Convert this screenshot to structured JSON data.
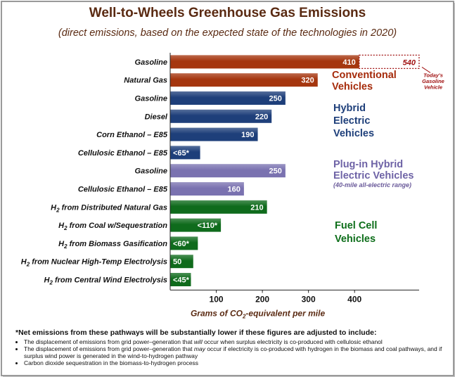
{
  "chart_data": {
    "type": "bar",
    "orientation": "horizontal",
    "title": "Well-to-Wheels Greenhouse Gas Emissions",
    "subtitle": "(direct emissions, based on the expected state of the technologies in 2020)",
    "xlabel_pre": "Grams of CO",
    "xlabel_sub": "2",
    "xlabel_post": "-equivalent per mile",
    "xlim": [
      0,
      540
    ],
    "xticks": [
      100,
      200,
      300,
      400
    ],
    "bars": [
      {
        "pre": "",
        "sub": "",
        "label": "Gasoline",
        "value": 410,
        "display": "410",
        "group": 0
      },
      {
        "pre": "",
        "sub": "",
        "label": "Natural Gas",
        "value": 320,
        "display": "320",
        "group": 0
      },
      {
        "pre": "",
        "sub": "",
        "label": "Gasoline",
        "value": 250,
        "display": "250",
        "group": 1
      },
      {
        "pre": "",
        "sub": "",
        "label": "Diesel",
        "value": 220,
        "display": "220",
        "group": 1
      },
      {
        "pre": "",
        "sub": "",
        "label": "Corn Ethanol – E85",
        "value": 190,
        "display": "190",
        "group": 1
      },
      {
        "pre": "",
        "sub": "",
        "label": "Cellulosic Ethanol – E85",
        "value": 65,
        "display": "<65*",
        "group": 1
      },
      {
        "pre": "",
        "sub": "",
        "label": "Gasoline",
        "value": 250,
        "display": "250",
        "group": 2
      },
      {
        "pre": "",
        "sub": "",
        "label": "Cellulosic Ethanol – E85",
        "value": 160,
        "display": "160",
        "group": 2
      },
      {
        "pre": "H",
        "sub": "2",
        "label": " from Distributed Natural Gas",
        "value": 210,
        "display": "210",
        "group": 3
      },
      {
        "pre": "H",
        "sub": "2",
        "label": " from Coal w/Sequestration",
        "value": 110,
        "display": "<110*",
        "group": 3
      },
      {
        "pre": "H",
        "sub": "2",
        "label": " from Biomass Gasification",
        "value": 60,
        "display": "<60*",
        "group": 3
      },
      {
        "pre": "H",
        "sub": "2",
        "label": " from Nuclear High-Temp Electrolysis",
        "value": 50,
        "display": "50",
        "group": 3
      },
      {
        "pre": "H",
        "sub": "2",
        "label": " from Central Wind Electrolysis",
        "value": 45,
        "display": "<45*",
        "group": 3
      }
    ],
    "groups": [
      {
        "lines": [
          "Conventional",
          "Vehicles"
        ],
        "color": "#a52a0a",
        "note": ""
      },
      {
        "lines": [
          "Hybrid",
          "Electric",
          "Vehicles"
        ],
        "color": "#1e3f7a",
        "note": ""
      },
      {
        "lines": [
          "Plug-in Hybrid",
          "Electric Vehicles"
        ],
        "color": "#6e63a6",
        "note": "(40-mile all-electric range)"
      },
      {
        "lines": [
          "Fuel Cell",
          "Vehicles"
        ],
        "color": "#0d6e1a",
        "note": ""
      }
    ],
    "bar_colors": [
      "#a5360f",
      "#1e3f7a",
      "#7a72b0",
      "#0f6b1c"
    ],
    "reference": {
      "value": 540,
      "display": "540",
      "note_lines": [
        "Today's",
        "Gasoline",
        "Vehicle"
      ]
    }
  },
  "notes": {
    "heading": "*Net emissions from these pathways will be substantially lower if these figures are adjusted to include:",
    "bullets": [
      {
        "before": "The displacement of emissions from grid power–generation that ",
        "em": "will",
        "after": " occur when surplus electricity is co-produced with cellulosic ethanol"
      },
      {
        "before": "The displacement of emissions from grid power–generation that ",
        "em": "may",
        "after": " occur if electricity is co-produced with hydrogen in the biomass and coal pathways, and if surplus wind power is generated in the wind-to-hydrogen pathway"
      },
      {
        "before": "Carbon dioxide sequestration in the biomass-to-hydrogen process",
        "em": "",
        "after": ""
      }
    ]
  }
}
